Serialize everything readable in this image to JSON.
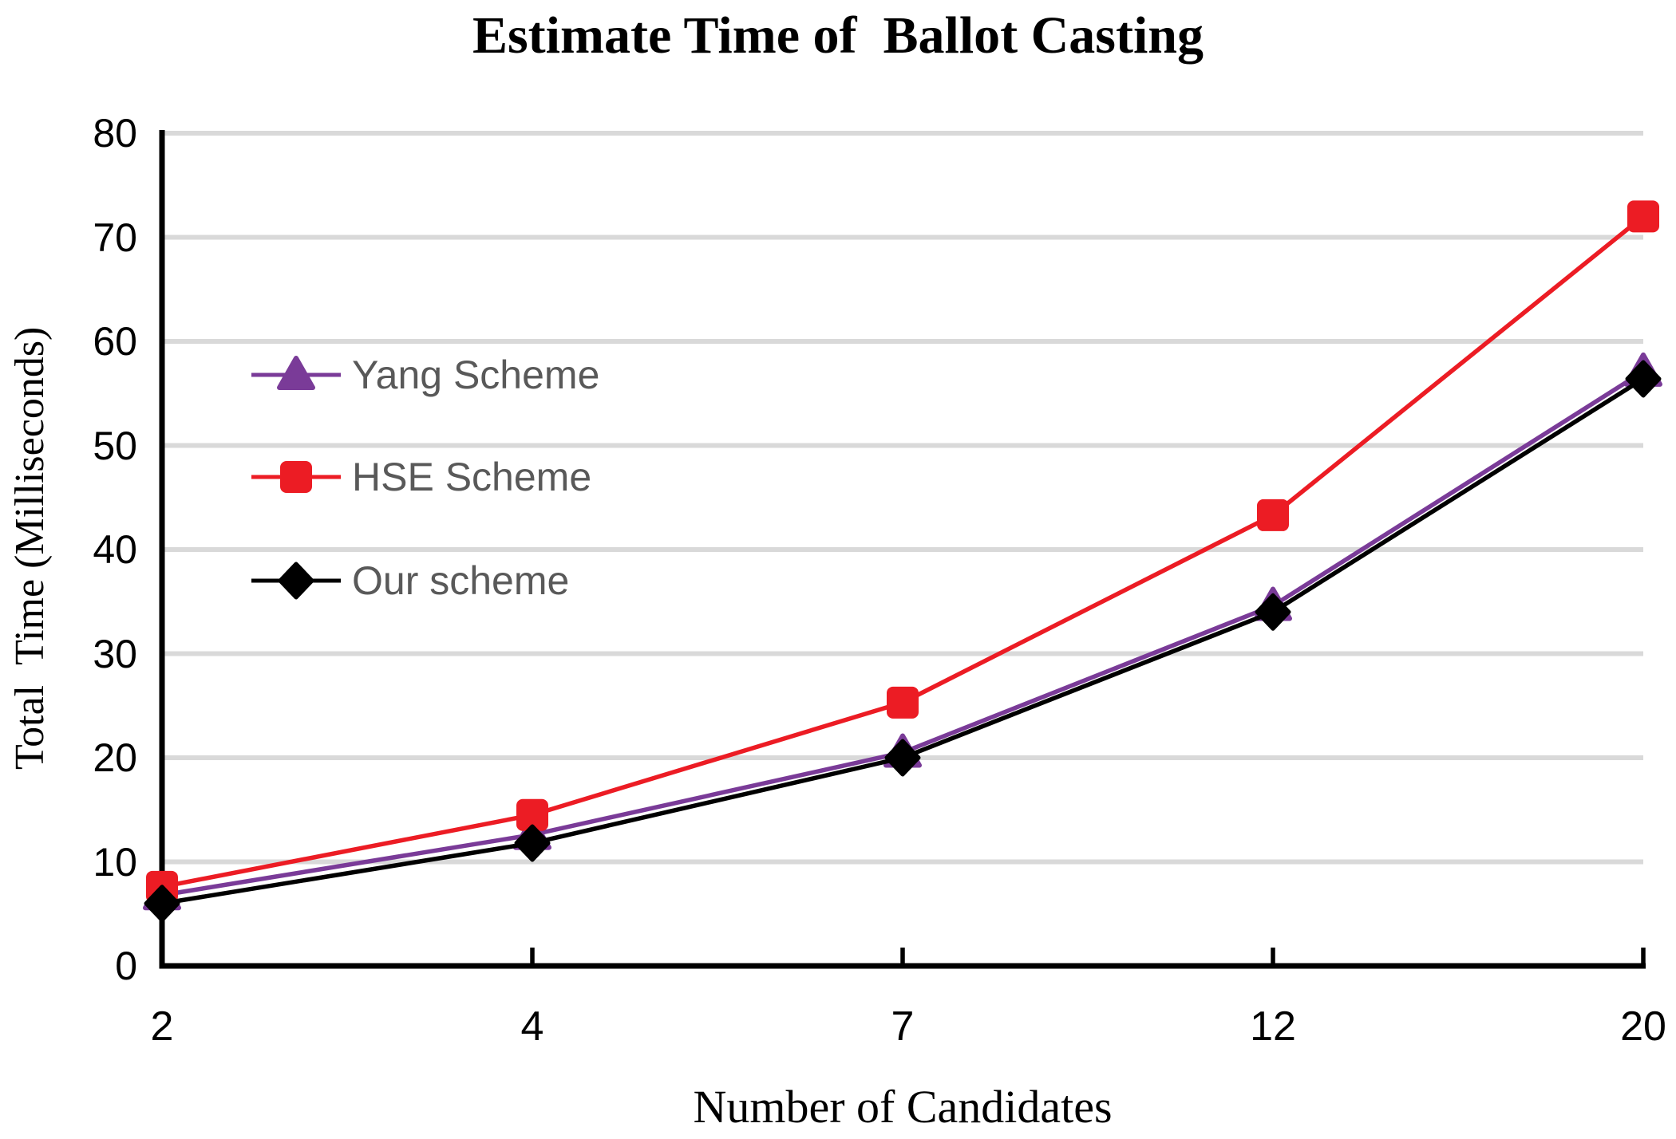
{
  "chart_data": {
    "type": "line",
    "title": "Estimate Time of  Ballot Casting",
    "xlabel": "Number of Candidates",
    "ylabel": "Total  Time (Milliseconds)",
    "categories": [
      2,
      4,
      7,
      12,
      20
    ],
    "x_tick_labels": [
      "2",
      "4",
      "7",
      "12",
      "20"
    ],
    "y_tick_labels": [
      0,
      10,
      20,
      30,
      40,
      50,
      60,
      70,
      80
    ],
    "ylim": [
      0,
      80
    ],
    "grid": true,
    "gridline_color": "#d9d9d9",
    "axis_color": "#000000",
    "legend_position": "inside-upper-left",
    "legend_text_color": "#595959",
    "series": [
      {
        "name": "Yang Scheme",
        "marker": "triangle",
        "color": "#7a3b98",
        "values": [
          6.8,
          12.6,
          20.5,
          34.6,
          57.1
        ]
      },
      {
        "name": "HSE Scheme",
        "marker": "square",
        "color": "#ec1c24",
        "values": [
          7.6,
          14.5,
          25.3,
          43.3,
          72.0
        ]
      },
      {
        "name": "Our scheme",
        "marker": "diamond",
        "color": "#000000",
        "values": [
          6.0,
          11.8,
          20.0,
          34.0,
          56.4
        ]
      }
    ]
  }
}
